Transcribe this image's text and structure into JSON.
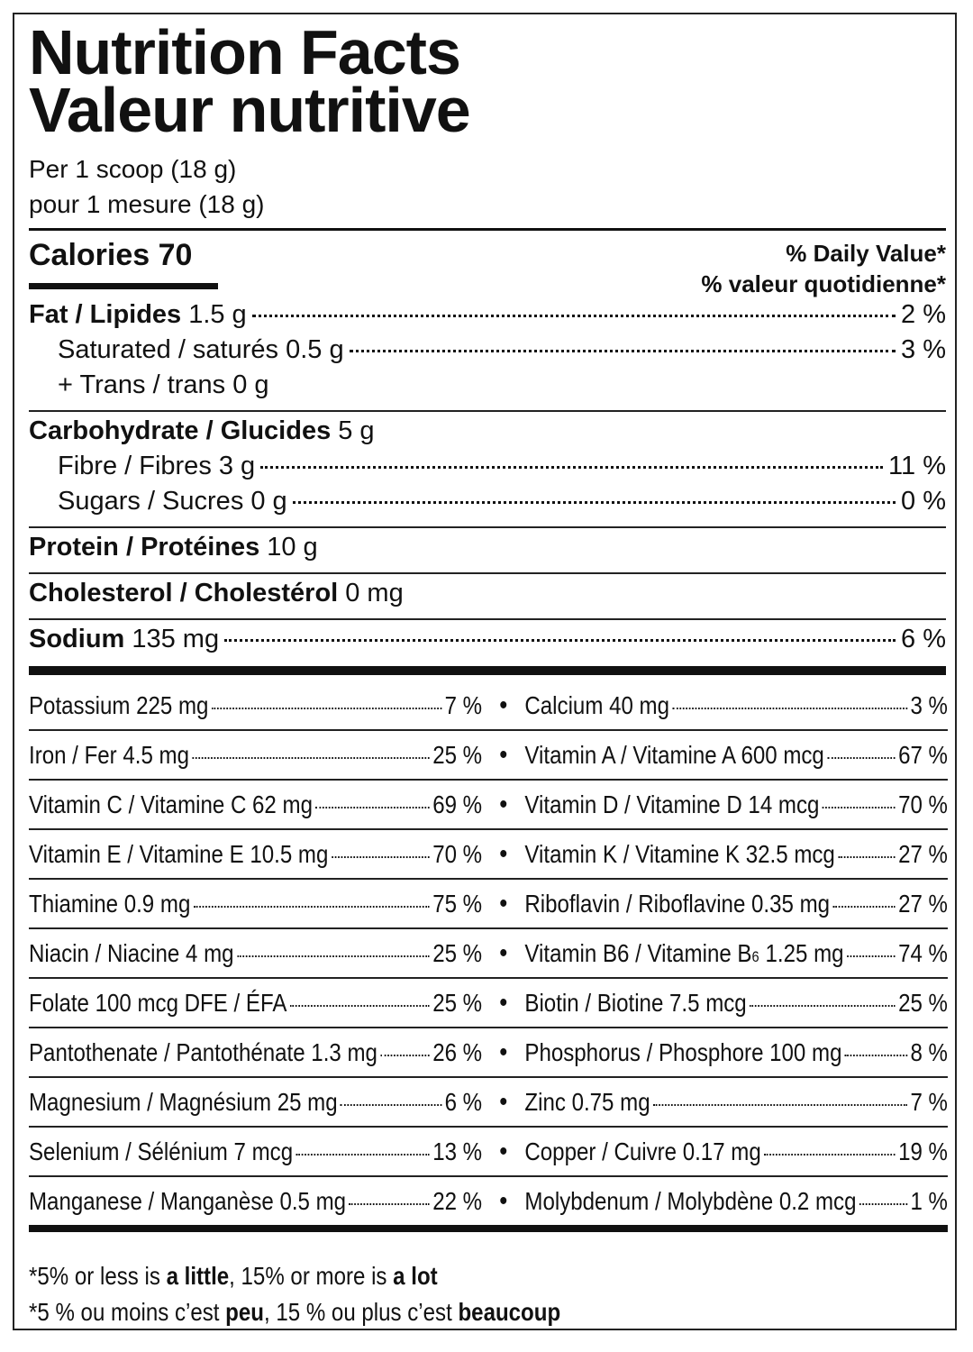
{
  "title": [
    "Nutrition Facts",
    "Valeur nutritive"
  ],
  "serving": [
    "Per 1 scoop (18 g)",
    "pour 1 mesure (18 g)"
  ],
  "calories": "Calories 70",
  "daily_value_header": [
    "% Daily Value*",
    "% valeur quotidienne*"
  ],
  "nutrient_groups": [
    [
      {
        "name": "Fat / Lipides",
        "amount": "1.5 g",
        "dv": "2 %"
      },
      {
        "name": "Saturated / saturés 0.5 g",
        "dv": "3 %"
      },
      {
        "name": "+ Trans / trans 0 g"
      }
    ],
    [
      {
        "name": "Carbohydrate / Glucides",
        "amount": "5 g"
      },
      {
        "name": "Fibre / Fibres 3 g",
        "dv": "11 %"
      },
      {
        "name": "Sugars / Sucres 0 g",
        "dv": "0 %"
      }
    ],
    [
      {
        "name": "Protein / Protéines",
        "amount": "10 g"
      }
    ],
    [
      {
        "name": "Cholesterol / Cholestérol",
        "amount": "0 mg"
      }
    ],
    [
      {
        "name": "Sodium",
        "amount": "135 mg",
        "dv": "6 %"
      }
    ]
  ],
  "micronutrients": [
    [
      {
        "name": "Potassium 225 mg",
        "dv": "7 %"
      },
      {
        "name": "Calcium 40 mg",
        "dv": "3 %"
      }
    ],
    [
      {
        "name": "Iron / Fer 4.5 mg",
        "dv": "25 %"
      },
      {
        "name": "Vitamin A / Vitamine A 600 mcg",
        "dv": "67 %"
      }
    ],
    [
      {
        "name": "Vitamin C / Vitamine C 62 mg",
        "dv": "69 %"
      },
      {
        "name": "Vitamin D / Vitamine D 14 mcg",
        "dv": "70 %"
      }
    ],
    [
      {
        "name": "Vitamin E / Vitamine E 10.5 mg",
        "dv": "70 %"
      },
      {
        "name": "Vitamin K / Vitamine K 32.5 mcg",
        "dv": "27 %"
      }
    ],
    [
      {
        "name": "Thiamine 0.9 mg",
        "dv": "75 %"
      },
      {
        "name": "Riboflavin / Riboflavine 0.35 mg",
        "dv": "27 %"
      }
    ],
    [
      {
        "name": "Niacin / Niacine 4 mg",
        "dv": "25 %"
      },
      {
        "name": "Vitamin B6 / Vitamine B",
        "sub": "6",
        "after": "1.25 mg",
        "dv": "74 %"
      }
    ],
    [
      {
        "name": "Folate 100 mcg DFE / ÉFA",
        "dv": "25 %"
      },
      {
        "name": "Biotin / Biotine 7.5 mcg",
        "dv": "25 %"
      }
    ],
    [
      {
        "name": "Pantothenate / Pantothénate 1.3 mg",
        "dv": "26 %"
      },
      {
        "name": "Phosphorus / Phosphore 100 mg",
        "dv": "8 %"
      }
    ],
    [
      {
        "name": "Magnesium / Magnésium 25 mg",
        "dv": "6 %"
      },
      {
        "name": "Zinc 0.75 mg",
        "dv": "7 %"
      }
    ],
    [
      {
        "name": "Selenium / Sélénium 7 mcg",
        "dv": "13 %"
      },
      {
        "name": "Copper / Cuivre 0.17 mg",
        "dv": "19 %"
      }
    ],
    [
      {
        "name": "Manganese / Manganèse 0.5 mg",
        "dv": "22 %"
      },
      {
        "name": "Molybdenum / Molybdène 0.2 mcg",
        "dv": "1 %"
      }
    ]
  ],
  "footnote": [
    [
      {
        "text": "*5% or less is "
      },
      {
        "text": "a little",
        "bold": true
      },
      {
        "text": ", 15% or more is "
      },
      {
        "text": "a lot",
        "bold": true
      }
    ],
    [
      {
        "text": "*5 % ou moins c’est "
      },
      {
        "text": "peu",
        "bold": true
      },
      {
        "text": ", 15 % ou plus c’est "
      },
      {
        "text": "beaucoup",
        "bold": true
      }
    ]
  ]
}
